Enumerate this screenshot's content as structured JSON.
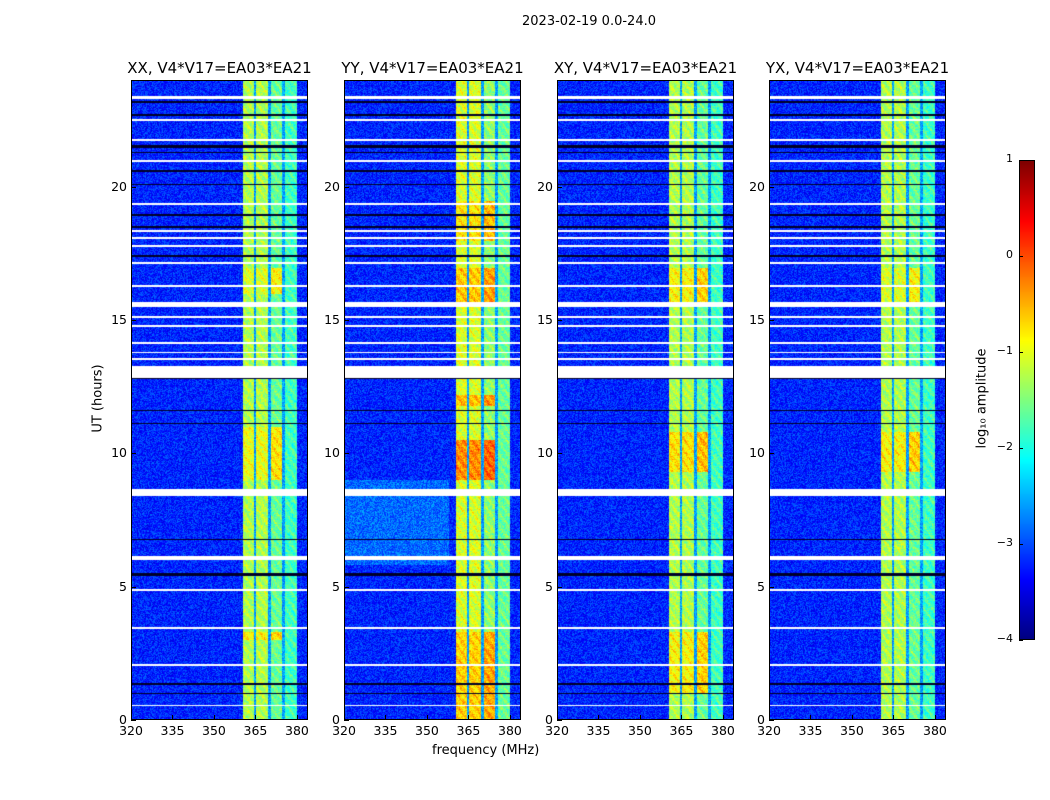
{
  "figure": {
    "suptitle": "2023-02-19 0.0-24.0",
    "ylabel": "UT (hours)",
    "xlabel": "frequency (MHz)"
  },
  "chart_data": {
    "type": "heatmap",
    "colormap": "jet",
    "panels": [
      {
        "title": "XX, V4*V17=EA03*EA21",
        "band_level": -1.0,
        "hot": [
          [
            3.0,
            3.3,
            -0.6
          ],
          [
            9.0,
            11.0,
            -0.7
          ],
          [
            16.0,
            17.0,
            -0.8
          ]
        ]
      },
      {
        "title": "YY, V4*V17=EA03*EA21",
        "band_level": -0.8,
        "hot": [
          [
            0.0,
            3.3,
            -0.4
          ],
          [
            9.0,
            10.5,
            -0.05
          ],
          [
            11.8,
            12.2,
            -0.3
          ],
          [
            15.5,
            17.0,
            -0.35
          ],
          [
            18.0,
            19.5,
            -0.5
          ]
        ]
      },
      {
        "title": "XY, V4*V17=EA03*EA21",
        "band_level": -1.0,
        "hot": [
          [
            1.0,
            3.3,
            -0.6
          ],
          [
            9.3,
            10.8,
            -0.5
          ],
          [
            15.5,
            17.0,
            -0.6
          ]
        ]
      },
      {
        "title": "YX, V4*V17=EA03*EA21",
        "band_level": -1.0,
        "hot": [
          [
            9.3,
            10.8,
            -0.6
          ],
          [
            15.5,
            17.0,
            -0.8
          ]
        ]
      }
    ],
    "x": {
      "label": "frequency (MHz)",
      "range": [
        320,
        384
      ],
      "ticks": [
        320,
        335,
        350,
        365,
        380
      ]
    },
    "y": {
      "label": "UT (hours)",
      "range": [
        0,
        24
      ],
      "ticks": [
        0,
        5,
        10,
        15,
        20
      ]
    },
    "background_level": -3.2,
    "band_range_mhz": [
      360.4,
      380.0
    ],
    "band_gaps_mhz": [
      364.8,
      370.2,
      375.2
    ],
    "flagged_rows_hours": [
      [
        23.35,
        23.45
      ],
      [
        22.52,
        22.6
      ],
      [
        21.78,
        21.85
      ],
      [
        20.97,
        21.03
      ],
      [
        19.36,
        19.42
      ],
      [
        18.34,
        18.4
      ],
      [
        18.08,
        18.14
      ],
      [
        17.78,
        17.84
      ],
      [
        17.14,
        17.2
      ],
      [
        16.28,
        16.34
      ],
      [
        15.5,
        15.7
      ],
      [
        15.12,
        15.18
      ],
      [
        14.78,
        14.84
      ],
      [
        14.14,
        14.2
      ],
      [
        13.77,
        13.83
      ],
      [
        13.54,
        13.6
      ],
      [
        12.86,
        13.3
      ],
      [
        8.4,
        8.66
      ],
      [
        6.0,
        6.15
      ],
      [
        4.84,
        4.9
      ],
      [
        3.42,
        3.48
      ],
      [
        2.03,
        2.09
      ],
      [
        0.49,
        0.55
      ]
    ],
    "dark_rows_hours": [
      [
        23.2,
        23.27
      ],
      [
        22.7,
        22.76
      ],
      [
        21.5,
        21.6
      ],
      [
        21.3,
        21.36
      ],
      [
        20.6,
        20.68
      ],
      [
        20.1,
        20.16
      ],
      [
        18.95,
        19.0
      ],
      [
        18.5,
        18.58
      ],
      [
        17.4,
        17.46
      ],
      [
        12.8,
        12.85
      ],
      [
        11.6,
        11.66
      ],
      [
        11.1,
        11.15
      ],
      [
        6.75,
        6.8
      ],
      [
        5.4,
        5.5
      ],
      [
        1.3,
        1.38
      ],
      [
        0.95,
        1.0
      ]
    ],
    "colorbar": {
      "label": "log₁₀ amplitude",
      "range": [
        -4,
        1
      ],
      "ticks": [
        1,
        0,
        -1,
        -2,
        -3,
        -4
      ]
    }
  }
}
